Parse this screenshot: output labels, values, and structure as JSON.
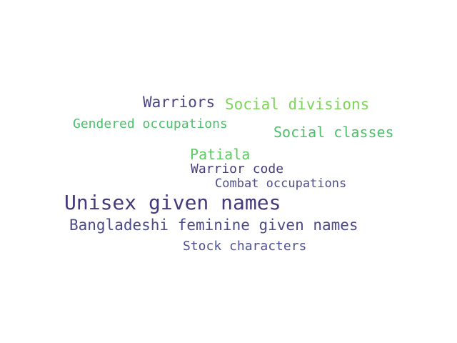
{
  "words": [
    {
      "text": "Warriors",
      "color": "#4a4585"
    },
    {
      "text": "Social divisions",
      "color": "#7dd45a"
    },
    {
      "text": "Gendered occupations",
      "color": "#4cbf6a"
    },
    {
      "text": "Social classes",
      "color": "#4cbf6a"
    },
    {
      "text": "Patiala",
      "color": "#5ec962"
    },
    {
      "text": "Warrior code",
      "color": "#453d7f"
    },
    {
      "text": "Combat occupations",
      "color": "#4d4e8a"
    },
    {
      "text": "Unisex given names",
      "color": "#433a7c"
    },
    {
      "text": "Bangladeshi feminine given names",
      "color": "#4a4a8a"
    },
    {
      "text": "Stock characters",
      "color": "#4d5290"
    }
  ]
}
